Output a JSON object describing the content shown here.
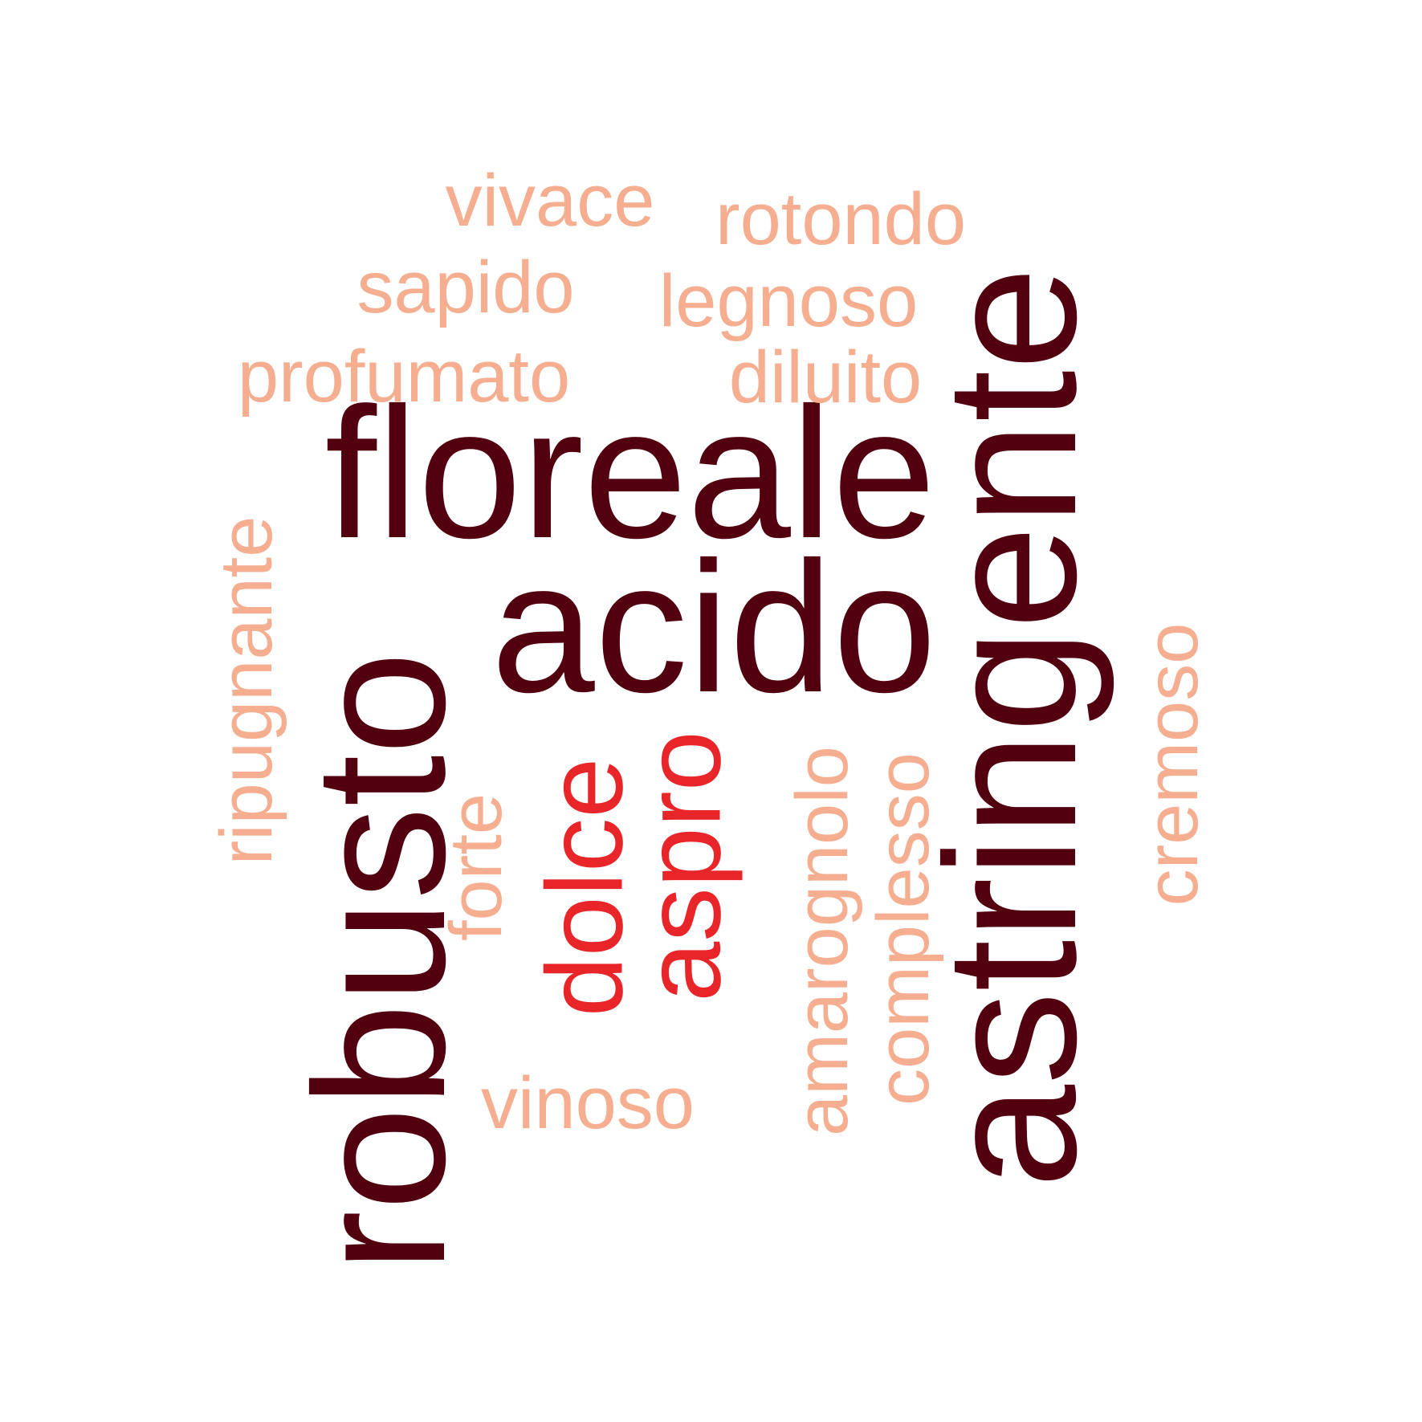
{
  "cloud": {
    "colors": {
      "dark": "#520010",
      "mid": "#e8262a",
      "light": "#f6ae90"
    },
    "words": {
      "floreale": {
        "text": "floreale",
        "tier": "large"
      },
      "acido": {
        "text": "acido",
        "tier": "large"
      },
      "robusto": {
        "text": "robusto",
        "tier": "large"
      },
      "astringente": {
        "text": "astringente",
        "tier": "large"
      },
      "dolce": {
        "text": "dolce",
        "tier": "medium"
      },
      "aspro": {
        "text": "aspro",
        "tier": "medium"
      },
      "vivace": {
        "text": "vivace",
        "tier": "small"
      },
      "rotondo": {
        "text": "rotondo",
        "tier": "small"
      },
      "sapido": {
        "text": "sapido",
        "tier": "small"
      },
      "legnoso": {
        "text": "legnoso",
        "tier": "small"
      },
      "profumato": {
        "text": "profumato",
        "tier": "small"
      },
      "diluito": {
        "text": "diluito",
        "tier": "small"
      },
      "ripugnante": {
        "text": "ripugnante",
        "tier": "small"
      },
      "forte": {
        "text": "forte",
        "tier": "small"
      },
      "amarognolo": {
        "text": "amarognolo",
        "tier": "small"
      },
      "complesso": {
        "text": "complesso",
        "tier": "small"
      },
      "cremoso": {
        "text": "cremoso",
        "tier": "small"
      },
      "vinoso": {
        "text": "vinoso",
        "tier": "small"
      }
    }
  }
}
